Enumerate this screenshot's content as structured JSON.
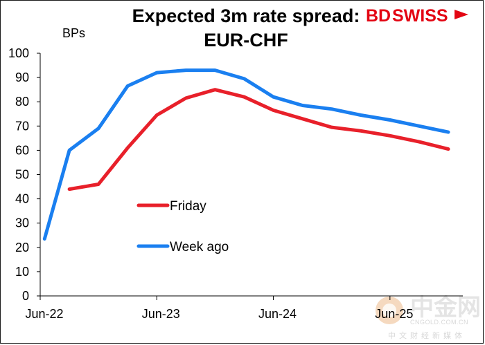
{
  "chart_data": {
    "type": "line",
    "title_line1": "Expected 3m rate spread:",
    "title_line2": "EUR-CHF",
    "ylabel": "BPs",
    "ylim": [
      0,
      100
    ],
    "yticks": [
      0,
      10,
      20,
      30,
      40,
      50,
      60,
      70,
      80,
      90,
      100
    ],
    "xlim": [
      0,
      14.5
    ],
    "xticks": [
      {
        "label": "Jun-22",
        "x": 0
      },
      {
        "label": "Jun-23",
        "x": 4
      },
      {
        "label": "Jun-24",
        "x": 8
      },
      {
        "label": "Jun-25",
        "x": 12
      }
    ],
    "series": [
      {
        "name": "Friday",
        "color": "#e8202a",
        "points": [
          {
            "x": 1,
            "y": 44
          },
          {
            "x": 2,
            "y": 46
          },
          {
            "x": 3,
            "y": 61
          },
          {
            "x": 4,
            "y": 74.5
          },
          {
            "x": 5,
            "y": 81.5
          },
          {
            "x": 6,
            "y": 85
          },
          {
            "x": 7,
            "y": 82
          },
          {
            "x": 8,
            "y": 76.5
          },
          {
            "x": 9,
            "y": 73
          },
          {
            "x": 10,
            "y": 69.5
          },
          {
            "x": 11,
            "y": 68
          },
          {
            "x": 12,
            "y": 66
          },
          {
            "x": 13,
            "y": 63.5
          },
          {
            "x": 14,
            "y": 60.5
          }
        ]
      },
      {
        "name": "Week ago",
        "color": "#1a7ff0",
        "points": [
          {
            "x": 0.15,
            "y": 23.5
          },
          {
            "x": 1,
            "y": 60
          },
          {
            "x": 2,
            "y": 69
          },
          {
            "x": 3,
            "y": 86.5
          },
          {
            "x": 4,
            "y": 92
          },
          {
            "x": 5,
            "y": 93
          },
          {
            "x": 6,
            "y": 93
          },
          {
            "x": 7,
            "y": 89.5
          },
          {
            "x": 8,
            "y": 82
          },
          {
            "x": 9,
            "y": 78.5
          },
          {
            "x": 10,
            "y": 77
          },
          {
            "x": 11,
            "y": 74.5
          },
          {
            "x": 12,
            "y": 72.5
          },
          {
            "x": 13,
            "y": 70
          },
          {
            "x": 14,
            "y": 67.5
          }
        ]
      }
    ],
    "legend": [
      {
        "label": "Friday",
        "color": "#e8202a"
      },
      {
        "label": "Week ago",
        "color": "#1a7ff0"
      }
    ]
  },
  "brand": {
    "part1": "BD",
    "part2": "SWISS",
    "color": "#e30613"
  },
  "watermark": {
    "chinese": "中金网",
    "domain": "CNGOLD.COM.CN",
    "subtitle": "中文财经新媒体"
  }
}
